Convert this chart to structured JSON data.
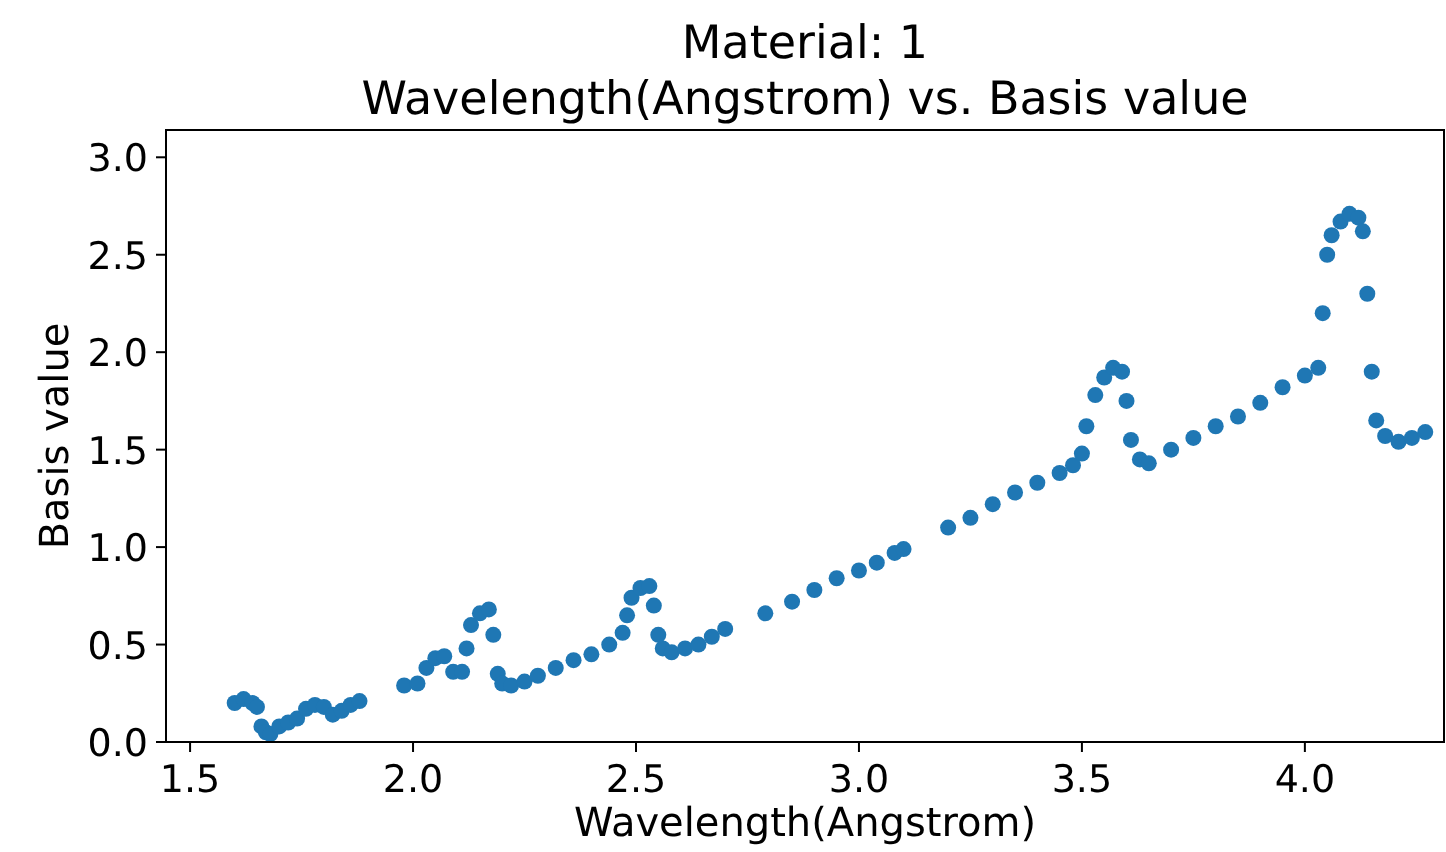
{
  "chart_data": {
    "type": "scatter",
    "title": "Material: 1\nWavelength(Angstrom) vs. Basis value",
    "xlabel": "Wavelength(Angstrom)",
    "ylabel": "Basis value",
    "xlim": [
      1.446,
      4.312
    ],
    "ylim": [
      0,
      3.14
    ],
    "xticks": [
      1.5,
      {
        "value": 2,
        "label": "2.0"
      },
      2.5,
      {
        "value": 3,
        "label": "3.0"
      },
      3.5,
      {
        "value": 4,
        "label": "4.0"
      }
    ],
    "yticks": [
      {
        "value": 0,
        "label": "0.0"
      },
      0.5,
      {
        "value": 1,
        "label": "1.0"
      },
      1.5,
      {
        "value": 2,
        "label": "2.0"
      },
      2.5,
      {
        "value": 3,
        "label": "3.0"
      }
    ],
    "grid": false,
    "marker": "circle",
    "series": [
      {
        "color": "#1f77b4",
        "x": [
          1.6,
          1.62,
          1.64,
          1.65,
          1.66,
          1.67,
          1.68,
          1.7,
          1.72,
          1.74,
          1.76,
          1.78,
          1.8,
          1.82,
          1.84,
          1.86,
          1.88,
          1.98,
          2.01,
          2.03,
          2.05,
          2.07,
          2.09,
          2.11,
          2.12,
          2.13,
          2.15,
          2.17,
          2.18,
          2.19,
          2.2,
          2.22,
          2.25,
          2.28,
          2.32,
          2.36,
          2.4,
          2.44,
          2.47,
          2.48,
          2.49,
          2.51,
          2.53,
          2.54,
          2.55,
          2.56,
          2.58,
          2.61,
          2.64,
          2.67,
          2.7,
          2.79,
          2.85,
          2.9,
          2.95,
          3.0,
          3.04,
          3.08,
          3.1,
          3.2,
          3.25,
          3.3,
          3.35,
          3.4,
          3.45,
          3.48,
          3.5,
          3.51,
          3.53,
          3.55,
          3.57,
          3.59,
          3.6,
          3.61,
          3.63,
          3.65,
          3.7,
          3.75,
          3.8,
          3.85,
          3.9,
          3.95,
          4.0,
          4.03,
          4.04,
          4.05,
          4.06,
          4.08,
          4.1,
          4.12,
          4.13,
          4.14,
          4.15,
          4.16,
          4.18,
          4.21,
          4.24,
          4.27
        ],
        "values": [
          0.2,
          0.22,
          0.2,
          0.18,
          0.08,
          0.05,
          0.04,
          0.08,
          0.1,
          0.12,
          0.17,
          0.19,
          0.18,
          0.14,
          0.16,
          0.19,
          0.21,
          0.29,
          0.3,
          0.38,
          0.43,
          0.44,
          0.36,
          0.36,
          0.48,
          0.6,
          0.66,
          0.68,
          0.55,
          0.35,
          0.3,
          0.29,
          0.31,
          0.34,
          0.38,
          0.42,
          0.45,
          0.5,
          0.56,
          0.65,
          0.74,
          0.79,
          0.8,
          0.7,
          0.55,
          0.48,
          0.46,
          0.48,
          0.5,
          0.54,
          0.58,
          0.66,
          0.72,
          0.78,
          0.84,
          0.88,
          0.92,
          0.97,
          0.99,
          1.1,
          1.15,
          1.22,
          1.28,
          1.33,
          1.38,
          1.42,
          1.48,
          1.62,
          1.78,
          1.87,
          1.92,
          1.9,
          1.75,
          1.55,
          1.45,
          1.43,
          1.5,
          1.56,
          1.62,
          1.67,
          1.74,
          1.82,
          1.88,
          1.92,
          2.2,
          2.5,
          2.6,
          2.67,
          2.71,
          2.69,
          2.62,
          2.3,
          1.9,
          1.65,
          1.57,
          1.54,
          1.56,
          1.59
        ]
      }
    ]
  }
}
